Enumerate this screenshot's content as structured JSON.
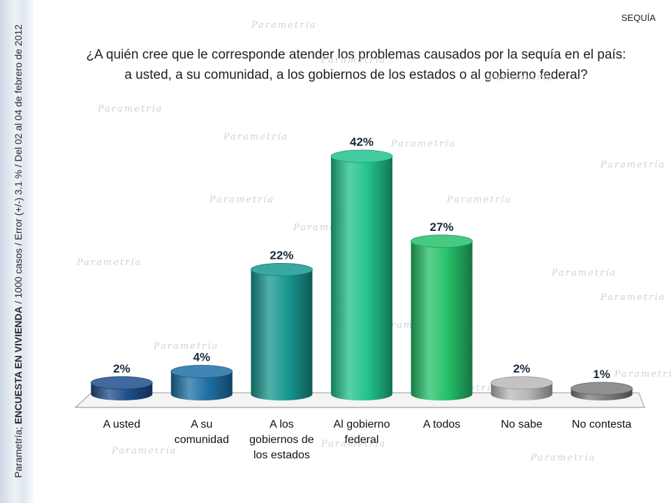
{
  "section_tag": "SEQUÍA",
  "question_line1": "¿A quién cree que le corresponde atender los problemas causados por la sequía en el país:",
  "question_line2": "a usted, a su comunidad, a los gobiernos de los estados o al gobierno federal?",
  "side_note": {
    "prefix": "Parametría; ",
    "emphasis": "ENCUESTA EN VIVIENDA",
    "suffix": " / 1000 casos / Error (+/-) 3.1 % / Del 02 al 04 de febrero de 2012"
  },
  "watermark_text": "Parametría",
  "colors": {
    "A usted": "#1f4e8c",
    "A su comunidad": "#1f6fa6",
    "A los gobiernos de los estados": "#17978f",
    "Al gobierno federal": "#22c28e",
    "A todos": "#25c06a",
    "No sabe": "#b8b8b8",
    "No contesta": "#7c7c7c"
  },
  "chart_data": {
    "type": "bar",
    "categories": [
      "A usted",
      "A su comunidad",
      "A los gobiernos de los estados",
      "Al gobierno federal",
      "A todos",
      "No sabe",
      "No contesta"
    ],
    "category_lines": [
      [
        "A usted"
      ],
      [
        "A su",
        "comunidad"
      ],
      [
        "A los",
        "gobiernos de",
        "los estados"
      ],
      [
        "Al gobierno",
        "federal"
      ],
      [
        "A todos"
      ],
      [
        "No sabe"
      ],
      [
        "No contesta"
      ]
    ],
    "values": [
      2,
      4,
      22,
      42,
      27,
      2,
      1
    ],
    "value_labels": [
      "2%",
      "4%",
      "22%",
      "42%",
      "27%",
      "2%",
      "1%"
    ],
    "unit": "%",
    "ylim": [
      0,
      42
    ],
    "grid": false,
    "legend": "none"
  }
}
